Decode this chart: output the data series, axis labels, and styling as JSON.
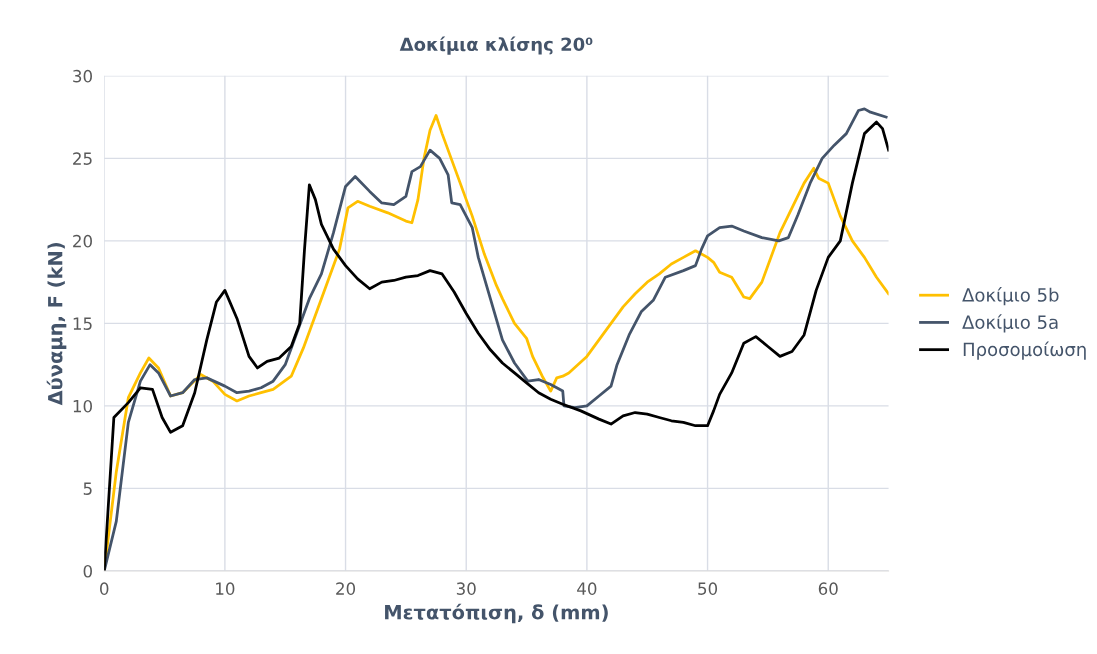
{
  "chart_data": {
    "type": "line",
    "title": "Δοκίμια κλίσης 20⁰",
    "xlabel": "Μετατόπιση, δ (mm)",
    "ylabel": "Δύναμη, F (kN)",
    "xlim": [
      0,
      65
    ],
    "xticks": [
      0,
      10,
      20,
      30,
      40,
      50,
      60
    ],
    "ylim": [
      0,
      30
    ],
    "yticks": [
      0,
      5,
      10,
      15,
      20,
      25,
      30
    ],
    "grid": true,
    "legend": "right",
    "marker": "none",
    "line_style": "solid",
    "series": [
      {
        "name": "Δοκίμιο 5b",
        "color": "#ffc000",
        "x": [
          0,
          1,
          2,
          3,
          3.7,
          4.5,
          5.5,
          6.5,
          8,
          9,
          10,
          11,
          12,
          13,
          14,
          15.5,
          16.5,
          18,
          19.5,
          20.2,
          21,
          22,
          23.5,
          25,
          25.5,
          26,
          26.5,
          27,
          27.5,
          28,
          29,
          30.5,
          31.5,
          32.5,
          33,
          34,
          35,
          35.5,
          36.3,
          37,
          37.5,
          38,
          38.5,
          40,
          41,
          42,
          43,
          44,
          45,
          46,
          47,
          48,
          49,
          50,
          50.5,
          51,
          52,
          53,
          53.5,
          54.5,
          56,
          57,
          58,
          58.8,
          59.2,
          60,
          61,
          62,
          63,
          64,
          65
        ],
        "values": [
          0,
          6,
          10.5,
          12,
          12.9,
          12.3,
          10.6,
          10.8,
          11.9,
          11.5,
          10.7,
          10.3,
          10.6,
          10.8,
          11,
          11.8,
          13.5,
          16.5,
          19.5,
          22,
          22.4,
          22.1,
          21.7,
          21.2,
          21.1,
          22.5,
          25,
          26.7,
          27.6,
          26.5,
          24.5,
          21.5,
          19.2,
          17.3,
          16.5,
          15,
          14.1,
          13,
          11.8,
          10.9,
          11.7,
          11.8,
          12,
          13,
          14,
          15,
          16,
          16.8,
          17.5,
          18,
          18.6,
          19,
          19.4,
          19,
          18.7,
          18.1,
          17.8,
          16.6,
          16.5,
          17.5,
          20.5,
          22,
          23.5,
          24.4,
          23.8,
          23.5,
          21.5,
          20,
          19,
          17.8,
          16.8
        ]
      },
      {
        "name": "Δοκίμιο 5a",
        "color": "#44546a",
        "x": [
          0,
          1,
          2,
          3,
          3.8,
          4.5,
          5.5,
          6.5,
          7.5,
          8.5,
          10,
          11,
          12,
          13,
          14,
          15,
          16,
          17,
          18,
          19,
          20,
          20.8,
          22,
          23,
          24,
          25,
          25.5,
          26.2,
          27,
          27.8,
          28.5,
          28.8,
          29.5,
          30.5,
          31,
          32,
          33,
          34,
          35.1,
          36,
          37,
          38,
          38.1,
          39,
          40,
          41,
          42,
          42.5,
          43.5,
          44.5,
          45.5,
          46.5,
          48,
          49,
          49.5,
          50,
          51,
          52,
          53,
          54.5,
          55.9,
          56.7,
          57.5,
          58.5,
          59.5,
          60.5,
          61.5,
          62.5,
          63,
          63.5,
          64.8
        ],
        "values": [
          0,
          3,
          9,
          11.5,
          12.5,
          12,
          10.6,
          10.8,
          11.6,
          11.7,
          11.2,
          10.8,
          10.9,
          11.1,
          11.5,
          12.5,
          14.5,
          16.5,
          18,
          20.5,
          23.3,
          23.9,
          23,
          22.3,
          22.2,
          22.7,
          24.2,
          24.5,
          25.5,
          25,
          24,
          22.3,
          22.2,
          20.8,
          19,
          16.5,
          14,
          12.6,
          11.5,
          11.6,
          11.3,
          10.9,
          10,
          9.9,
          10,
          10.6,
          11.2,
          12.5,
          14.3,
          15.7,
          16.4,
          17.8,
          18.2,
          18.5,
          19.5,
          20.3,
          20.8,
          20.9,
          20.6,
          20.2,
          20,
          20.2,
          21.6,
          23.5,
          25,
          25.8,
          26.5,
          27.9,
          28,
          27.8,
          27.5
        ]
      },
      {
        "name": "Προσομοίωση",
        "color": "#000000",
        "x": [
          0,
          0.8,
          2,
          3,
          4,
          4.8,
          5.5,
          6.5,
          7.5,
          8.5,
          9.3,
          10,
          11,
          12,
          12.7,
          13.5,
          14.5,
          15.5,
          16.2,
          16.6,
          17,
          17.5,
          18,
          19,
          20,
          21,
          22,
          23,
          24,
          25,
          26,
          27,
          28,
          29,
          30,
          31,
          32,
          33,
          34,
          35,
          36,
          37,
          38,
          39.5,
          41,
          42,
          43,
          44,
          45,
          46,
          47,
          48,
          49,
          50,
          50.5,
          51,
          52,
          53,
          54,
          55,
          56,
          57,
          58,
          59,
          60,
          61,
          62,
          63,
          64,
          64.5,
          65
        ],
        "values": [
          0,
          9.3,
          10.2,
          11.1,
          11,
          9.3,
          8.4,
          8.8,
          10.8,
          14,
          16.3,
          17,
          15.3,
          13,
          12.3,
          12.7,
          12.9,
          13.6,
          15,
          19.5,
          23.4,
          22.5,
          21,
          19.5,
          18.5,
          17.7,
          17.1,
          17.5,
          17.6,
          17.8,
          17.9,
          18.2,
          18,
          16.9,
          15.6,
          14.4,
          13.4,
          12.6,
          12,
          11.4,
          10.8,
          10.4,
          10.1,
          9.7,
          9.2,
          8.9,
          9.4,
          9.6,
          9.5,
          9.3,
          9.1,
          9,
          8.8,
          8.8,
          9.7,
          10.7,
          12,
          13.8,
          14.2,
          13.6,
          13,
          13.3,
          14.3,
          17,
          19,
          20,
          23.5,
          26.5,
          27.2,
          26.8,
          25.5
        ]
      }
    ]
  }
}
